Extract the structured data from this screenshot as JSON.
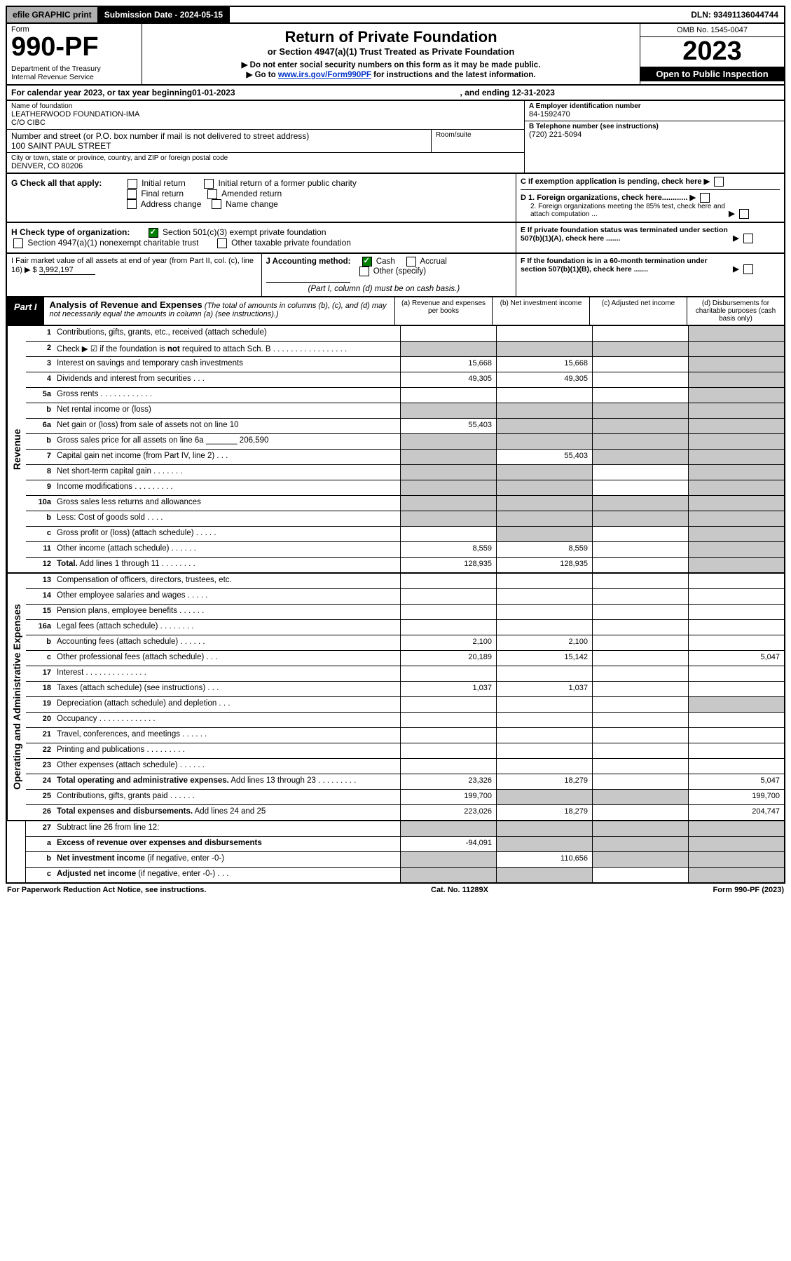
{
  "top": {
    "efile": "efile GRAPHIC print",
    "submission": "Submission Date - 2024-05-15",
    "dln": "DLN: 93491136044744"
  },
  "header": {
    "form_label": "Form",
    "form_no": "990-PF",
    "dept": "Department of the Treasury\nInternal Revenue Service",
    "title": "Return of Private Foundation",
    "subtitle": "or Section 4947(a)(1) Trust Treated as Private Foundation",
    "note1": "▶ Do not enter social security numbers on this form as it may be made public.",
    "note2_pre": "▶ Go to ",
    "note2_link": "www.irs.gov/Form990PF",
    "note2_post": " for instructions and the latest information.",
    "omb": "OMB No. 1545-0047",
    "year": "2023",
    "open": "Open to Public Inspection"
  },
  "calendar": {
    "pre": "For calendar year 2023, or tax year beginning ",
    "begin": "01-01-2023",
    "mid": ", and ending ",
    "end": "12-31-2023"
  },
  "entity": {
    "name_lbl": "Name of foundation",
    "name": "LEATHERWOOD FOUNDATION-IMA\nC/O CIBC",
    "addr_lbl": "Number and street (or P.O. box number if mail is not delivered to street address)",
    "addr": "100 SAINT PAUL STREET",
    "room_lbl": "Room/suite",
    "city_lbl": "City or town, state or province, country, and ZIP or foreign postal code",
    "city": "DENVER, CO  80206",
    "ein_lbl": "A Employer identification number",
    "ein": "84-1592470",
    "phone_lbl": "B Telephone number (see instructions)",
    "phone": "(720) 221-5094",
    "c": "C If exemption application is pending, check here",
    "d1": "D 1. Foreign organizations, check here............",
    "d2": "2. Foreign organizations meeting the 85% test, check here and attach computation ...",
    "e": "E  If private foundation status was terminated under section 507(b)(1)(A), check here .......",
    "f": "F  If the foundation is in a 60-month termination under section 507(b)(1)(B), check here .......",
    "g_lbl": "G Check all that apply:",
    "g_opts": [
      "Initial return",
      "Initial return of a former public charity",
      "Final return",
      "Amended return",
      "Address change",
      "Name change"
    ],
    "h_lbl": "H Check type of organization:",
    "h_1": "Section 501(c)(3) exempt private foundation",
    "h_2": "Section 4947(a)(1) nonexempt charitable trust",
    "h_3": "Other taxable private foundation",
    "i_lbl": "I Fair market value of all assets at end of year (from Part II, col. (c), line 16) ▶ $",
    "i_val": "3,992,197",
    "j_lbl": "J Accounting method:",
    "j_cash": "Cash",
    "j_accr": "Accrual",
    "j_other": "Other (specify)",
    "j_note": "(Part I, column (d) must be on cash basis.)"
  },
  "part1": {
    "badge": "Part I",
    "title": "Analysis of Revenue and Expenses",
    "desc": "(The total of amounts in columns (b), (c), and (d) may not necessarily equal the amounts in column (a) (see instructions).)",
    "col_a": "(a)   Revenue and expenses per books",
    "col_b": "(b)   Net investment income",
    "col_c": "(c)   Adjusted net income",
    "col_d": "(d)   Disbursements for charitable purposes (cash basis only)"
  },
  "side": {
    "rev": "Revenue",
    "exp": "Operating and Administrative Expenses"
  },
  "rows": [
    {
      "n": "1",
      "lbl": "Contributions, gifts, grants, etc., received (attach schedule)",
      "a": "",
      "b": "",
      "c": "",
      "d": "",
      "dgrey": true
    },
    {
      "n": "2",
      "lbl": "Check ▶ ☑ if the foundation is <b>not</b> required to attach Sch. B  . . . . . . . . . . . . . . . . .",
      "agrey": true,
      "bgrey": true,
      "cgrey": true,
      "dgrey": true
    },
    {
      "n": "3",
      "lbl": "Interest on savings and temporary cash investments",
      "a": "15,668",
      "b": "15,668",
      "c": "",
      "d": "",
      "dgrey": true
    },
    {
      "n": "4",
      "lbl": "Dividends and interest from securities   .  .  .",
      "a": "49,305",
      "b": "49,305",
      "c": "",
      "d": "",
      "dgrey": true
    },
    {
      "n": "5a",
      "lbl": "Gross rents   .  .  .  .  .  .  .  .  .  .  .  .",
      "a": "",
      "b": "",
      "c": "",
      "d": "",
      "dgrey": true
    },
    {
      "n": "b",
      "lbl": "Net rental income or (loss)",
      "agrey": true,
      "bgrey": true,
      "cgrey": true,
      "dgrey": true
    },
    {
      "n": "6a",
      "lbl": "Net gain or (loss) from sale of assets not on line 10",
      "a": "55,403",
      "bgrey": true,
      "cgrey": true,
      "dgrey": true
    },
    {
      "n": "b",
      "lbl": "Gross sales price for all assets on line 6a _______ 206,590",
      "agrey": true,
      "bgrey": true,
      "cgrey": true,
      "dgrey": true
    },
    {
      "n": "7",
      "lbl": "Capital gain net income (from Part IV, line 2)   .  .  .",
      "agrey": true,
      "b": "55,403",
      "cgrey": true,
      "dgrey": true
    },
    {
      "n": "8",
      "lbl": "Net short-term capital gain   .  .  .  .  .  .  .",
      "agrey": true,
      "bgrey": true,
      "c": "",
      "dgrey": true
    },
    {
      "n": "9",
      "lbl": "Income modifications   .  .  .  .  .  .  .  .  .",
      "agrey": true,
      "bgrey": true,
      "c": "",
      "dgrey": true
    },
    {
      "n": "10a",
      "lbl": "Gross sales less returns and allowances",
      "agrey": true,
      "bgrey": true,
      "cgrey": true,
      "dgrey": true
    },
    {
      "n": "b",
      "lbl": "Less: Cost of goods sold   .  .  .  .",
      "agrey": true,
      "bgrey": true,
      "cgrey": true,
      "dgrey": true
    },
    {
      "n": "c",
      "lbl": "Gross profit or (loss) (attach schedule)    .  .  .  .  .",
      "a": "",
      "bgrey": true,
      "c": "",
      "dgrey": true
    },
    {
      "n": "11",
      "lbl": "Other income (attach schedule)   .  .  .  .  .  .",
      "a": "8,559",
      "b": "8,559",
      "c": "",
      "dgrey": true
    },
    {
      "n": "12",
      "lbl": "<b>Total.</b> Add lines 1 through 11   .  .  .  .  .  .  .  .",
      "a": "128,935",
      "b": "128,935",
      "c": "",
      "dgrey": true
    }
  ],
  "erows": [
    {
      "n": "13",
      "lbl": "Compensation of officers, directors, trustees, etc.",
      "a": "",
      "b": "",
      "c": "",
      "d": ""
    },
    {
      "n": "14",
      "lbl": "Other employee salaries and wages   .  .  .  .  .",
      "a": "",
      "b": "",
      "c": "",
      "d": ""
    },
    {
      "n": "15",
      "lbl": "Pension plans, employee benefits   .  .  .  .  .  .",
      "a": "",
      "b": "",
      "c": "",
      "d": ""
    },
    {
      "n": "16a",
      "lbl": "Legal fees (attach schedule)  .  .  .  .  .  .  .  .",
      "a": "",
      "b": "",
      "c": "",
      "d": ""
    },
    {
      "n": "b",
      "lbl": "Accounting fees (attach schedule)   .  .  .  .  .  .",
      "a": "2,100",
      "b": "2,100",
      "c": "",
      "d": ""
    },
    {
      "n": "c",
      "lbl": "Other professional fees (attach schedule)    .  .  .",
      "a": "20,189",
      "b": "15,142",
      "c": "",
      "d": "5,047"
    },
    {
      "n": "17",
      "lbl": "Interest  .  .  .  .  .  .  .  .  .  .  .  .  .  .",
      "a": "",
      "b": "",
      "c": "",
      "d": ""
    },
    {
      "n": "18",
      "lbl": "Taxes (attach schedule) (see instructions)     .  .  .",
      "a": "1,037",
      "b": "1,037",
      "c": "",
      "d": ""
    },
    {
      "n": "19",
      "lbl": "Depreciation (attach schedule) and depletion    .  .  .",
      "a": "",
      "b": "",
      "c": "",
      "dgrey": true
    },
    {
      "n": "20",
      "lbl": "Occupancy  .  .  .  .  .  .  .  .  .  .  .  .  .",
      "a": "",
      "b": "",
      "c": "",
      "d": ""
    },
    {
      "n": "21",
      "lbl": "Travel, conferences, and meetings  .  .  .  .  .  .",
      "a": "",
      "b": "",
      "c": "",
      "d": ""
    },
    {
      "n": "22",
      "lbl": "Printing and publications  .  .  .  .  .  .  .  .  .",
      "a": "",
      "b": "",
      "c": "",
      "d": ""
    },
    {
      "n": "23",
      "lbl": "Other expenses (attach schedule)  .  .  .  .  .  .",
      "a": "",
      "b": "",
      "c": "",
      "d": ""
    },
    {
      "n": "24",
      "lbl": "<b>Total operating and administrative expenses.</b> Add lines 13 through 23   .  .  .  .  .  .  .  .  .",
      "a": "23,326",
      "b": "18,279",
      "c": "",
      "d": "5,047"
    },
    {
      "n": "25",
      "lbl": "Contributions, gifts, grants paid     .  .  .  .  .  .",
      "a": "199,700",
      "bgrey": true,
      "cgrey": true,
      "d": "199,700"
    },
    {
      "n": "26",
      "lbl": "<b>Total expenses and disbursements.</b> Add lines 24 and 25",
      "a": "223,026",
      "b": "18,279",
      "c": "",
      "d": "204,747"
    }
  ],
  "frows": [
    {
      "n": "27",
      "lbl": "Subtract line 26 from line 12:",
      "agrey": true,
      "bgrey": true,
      "cgrey": true,
      "dgrey": true
    },
    {
      "n": "a",
      "lbl": "<b>Excess of revenue over expenses and disbursements</b>",
      "a": "-94,091",
      "bgrey": true,
      "cgrey": true,
      "dgrey": true
    },
    {
      "n": "b",
      "lbl": "<b>Net investment income</b> (if negative, enter -0-)",
      "agrey": true,
      "b": "110,656",
      "cgrey": true,
      "dgrey": true
    },
    {
      "n": "c",
      "lbl": "<b>Adjusted net income</b> (if negative, enter -0-)   .  .  .",
      "agrey": true,
      "bgrey": true,
      "c": "",
      "dgrey": true
    }
  ],
  "footer": {
    "left": "For Paperwork Reduction Act Notice, see instructions.",
    "mid": "Cat. No. 11289X",
    "right": "Form 990-PF (2023)"
  }
}
